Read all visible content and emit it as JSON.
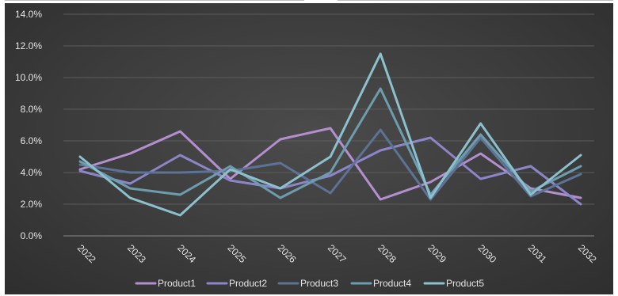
{
  "chart_data": {
    "type": "line",
    "title": "",
    "xlabel": "",
    "ylabel": "",
    "ylim": [
      0,
      14
    ],
    "grid": true,
    "legend_position": "bottom",
    "x": [
      "2022",
      "2023",
      "2024",
      "2025",
      "2026",
      "2027",
      "2028",
      "2029",
      "2030",
      "2031",
      "2032"
    ],
    "y_ticks": [
      "0.0%",
      "2.0%",
      "4.0%",
      "6.0%",
      "8.0%",
      "10.0%",
      "12.0%",
      "14.0%"
    ],
    "series": [
      {
        "name": "Product1",
        "color": "#b48fd0",
        "values": [
          4.2,
          5.2,
          6.6,
          3.6,
          6.1,
          6.8,
          2.3,
          3.4,
          5.2,
          3.0,
          2.4
        ]
      },
      {
        "name": "Product2",
        "color": "#8c85c9",
        "values": [
          4.1,
          3.3,
          5.1,
          3.5,
          3.0,
          3.8,
          5.4,
          6.2,
          3.6,
          4.4,
          2.0
        ]
      },
      {
        "name": "Product3",
        "color": "#5d7396",
        "values": [
          4.5,
          4.0,
          4.0,
          4.1,
          4.6,
          2.7,
          6.7,
          2.3,
          6.2,
          2.5,
          3.9
        ]
      },
      {
        "name": "Product4",
        "color": "#6d9cad",
        "values": [
          4.7,
          3.0,
          2.6,
          4.4,
          2.4,
          4.0,
          9.3,
          2.6,
          6.4,
          2.8,
          4.4
        ]
      },
      {
        "name": "Product5",
        "color": "#8bc0cc",
        "values": [
          5.0,
          2.4,
          1.3,
          4.2,
          3.0,
          5.0,
          11.5,
          2.4,
          7.1,
          2.6,
          5.1
        ]
      }
    ]
  }
}
